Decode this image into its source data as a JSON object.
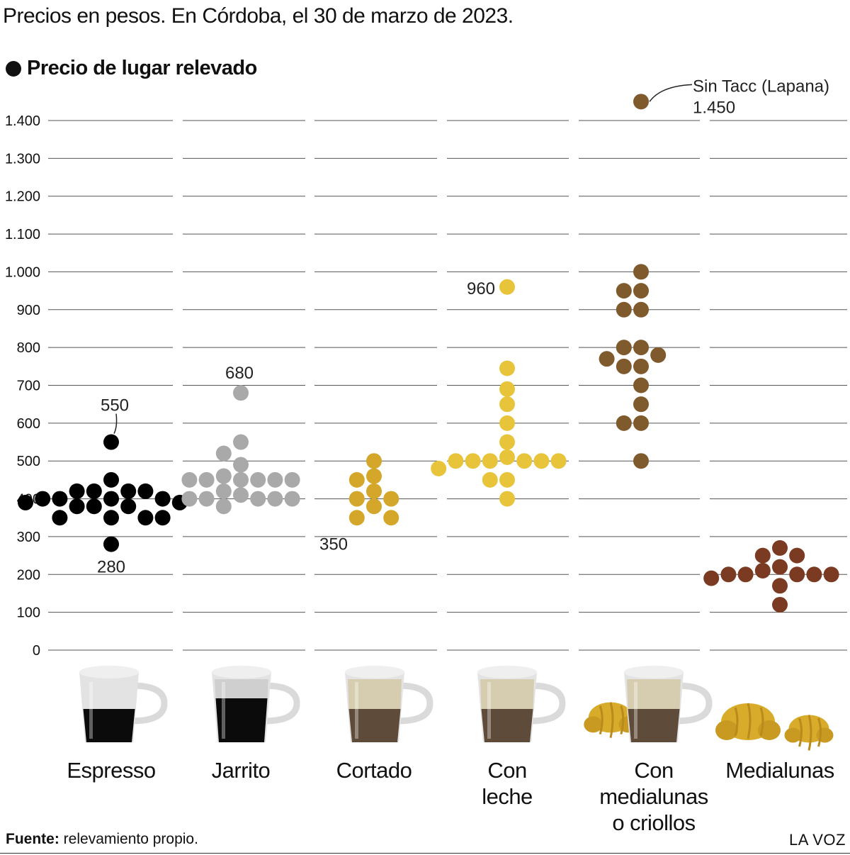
{
  "header": {
    "subtitle": "Precios en pesos. En Córdoba, el 30 de marzo de 2023.",
    "legend_label": "Precio de lugar relevado"
  },
  "footer": {
    "source_label": "Fuente:",
    "source_text": "relevamiento propio.",
    "brand": "LA VOZ"
  },
  "chart_data": {
    "type": "scatter",
    "ylim": [
      0,
      1450
    ],
    "y_ticks": [
      0,
      100,
      200,
      300,
      400,
      500,
      600,
      700,
      800,
      900,
      1000,
      1100,
      1200,
      1300,
      1400
    ],
    "y_tick_labels": [
      "0",
      "100",
      "200",
      "300",
      "400",
      "500",
      "600",
      "700",
      "800",
      "900",
      "1.000",
      "1.100",
      "1.200",
      "1.300",
      "1.400"
    ],
    "grid": true,
    "categories": [
      {
        "lines": [
          "Espresso"
        ],
        "color": "#000000",
        "values": [
          550,
          450,
          420,
          420,
          420,
          420,
          400,
          400,
          400,
          400,
          390,
          390,
          380,
          380,
          380,
          350,
          350,
          350,
          350,
          280
        ],
        "icon": "cup-icon"
      },
      {
        "lines": [
          "Jarrito"
        ],
        "color": "#a9a9a9",
        "values": [
          680,
          550,
          520,
          490,
          460,
          450,
          450,
          450,
          450,
          450,
          450,
          420,
          410,
          400,
          400,
          400,
          400,
          400,
          380
        ],
        "icon": "glass-cup-icon"
      },
      {
        "lines": [
          "Cortado"
        ],
        "color": "#d4a629",
        "values": [
          500,
          460,
          450,
          420,
          400,
          400,
          380,
          350,
          350
        ],
        "icon": "cortado-cup-icon"
      },
      {
        "lines": [
          "Con",
          "leche"
        ],
        "color": "#e8c43b",
        "values": [
          960,
          745,
          690,
          650,
          600,
          550,
          510,
          500,
          500,
          500,
          500,
          500,
          500,
          480,
          450,
          450,
          400
        ],
        "icon": "latte-cup-icon"
      },
      {
        "lines": [
          "Con",
          "medialunas",
          "o criollos"
        ],
        "color": "#7e5a2c",
        "values": [
          1450,
          1000,
          950,
          950,
          900,
          900,
          800,
          800,
          780,
          770,
          750,
          750,
          700,
          650,
          600,
          600,
          500
        ],
        "icon": "latte-croissant-icon"
      },
      {
        "lines": [
          "Medialunas"
        ],
        "color": "#7b3a22",
        "values": [
          270,
          250,
          250,
          220,
          210,
          200,
          200,
          200,
          200,
          200,
          190,
          170,
          120
        ],
        "icon": "croissant-icon"
      }
    ],
    "annotations": [
      {
        "text": "550",
        "category": 0,
        "value": 550
      },
      {
        "text": "280",
        "category": 0,
        "value": 280
      },
      {
        "text": "680",
        "category": 1,
        "value": 680
      },
      {
        "text": "350",
        "category": 2,
        "value": 350
      },
      {
        "text": "960",
        "category": 3,
        "value": 960
      },
      {
        "text": "Sin Tacc (Lapana)",
        "category": 4,
        "value": 1450
      },
      {
        "text": "1.450",
        "category": 4,
        "value": 1450
      }
    ]
  }
}
